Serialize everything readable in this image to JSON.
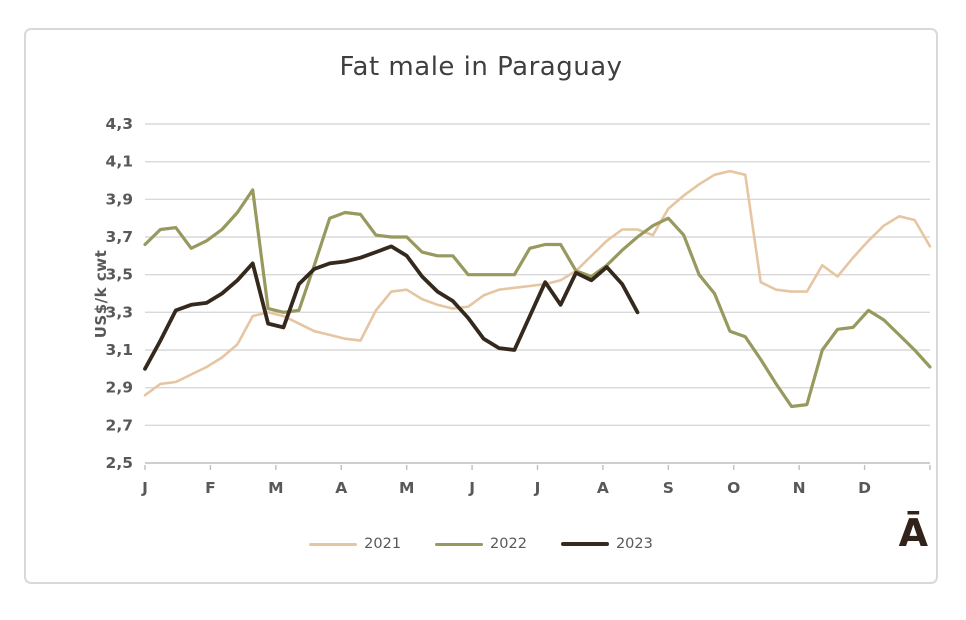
{
  "watermark": {
    "glyph": "Ā"
  },
  "chart_data": {
    "type": "line",
    "title": "Fat male in Paraguay",
    "xlabel": "",
    "ylabel": "US$/k cwt",
    "ylim": [
      2.5,
      4.3
    ],
    "grid": true,
    "legend_position": "bottom",
    "decimal_separator": ",",
    "y_tick_labels": [
      "2,5",
      "2,7",
      "2,9",
      "3,1",
      "3,3",
      "3,5",
      "3,7",
      "3,9",
      "4,1",
      "4,3"
    ],
    "x_tick_labels": [
      "J",
      "F",
      "M",
      "A",
      "M",
      "J",
      "J",
      "A",
      "S",
      "O",
      "N",
      "D"
    ],
    "points_per_year": 52,
    "series": [
      {
        "name": "2021",
        "color": "#e6c6a2",
        "line_width": 2.6,
        "values": [
          2.86,
          2.92,
          2.93,
          2.97,
          3.01,
          3.06,
          3.13,
          3.28,
          3.3,
          3.28,
          3.24,
          3.2,
          3.18,
          3.16,
          3.15,
          3.31,
          3.41,
          3.42,
          3.37,
          3.34,
          3.32,
          3.33,
          3.39,
          3.42,
          3.43,
          3.44,
          3.45,
          3.47,
          3.52,
          3.6,
          3.68,
          3.74,
          3.74,
          3.71,
          3.85,
          3.92,
          3.98,
          4.03,
          4.05,
          4.03,
          3.46,
          3.42,
          3.41,
          3.41,
          3.55,
          3.49,
          3.59,
          3.68,
          3.76,
          3.81,
          3.79,
          3.65
        ]
      },
      {
        "name": "2022",
        "color": "#97995e",
        "line_width": 3.2,
        "values": [
          3.66,
          3.74,
          3.75,
          3.64,
          3.68,
          3.74,
          3.83,
          3.95,
          3.32,
          3.3,
          3.31,
          3.55,
          3.8,
          3.83,
          3.82,
          3.71,
          3.7,
          3.7,
          3.62,
          3.6,
          3.6,
          3.5,
          3.5,
          3.5,
          3.5,
          3.64,
          3.66,
          3.66,
          3.52,
          3.49,
          3.55,
          3.63,
          3.7,
          3.76,
          3.8,
          3.71,
          3.5,
          3.4,
          3.2,
          3.17,
          3.05,
          2.92,
          2.8,
          2.81,
          3.1,
          3.21,
          3.22,
          3.31,
          3.26,
          3.18,
          3.1,
          3.01
        ]
      },
      {
        "name": "2023",
        "color": "#35281c",
        "line_width": 3.8,
        "values": [
          3.0,
          3.15,
          3.31,
          3.34,
          3.35,
          3.4,
          3.47,
          3.56,
          3.24,
          3.22,
          3.45,
          3.53,
          3.56,
          3.57,
          3.59,
          3.62,
          3.65,
          3.6,
          3.49,
          3.41,
          3.36,
          3.27,
          3.16,
          3.11,
          3.1,
          3.28,
          3.46,
          3.34,
          3.51,
          3.47,
          3.54,
          3.45,
          3.3
        ]
      }
    ],
    "colors": {
      "grid": "#d9d9d9",
      "axis": "#bfbfbf",
      "tick_text": "#595959",
      "title_text": "#3f3f3f"
    }
  }
}
